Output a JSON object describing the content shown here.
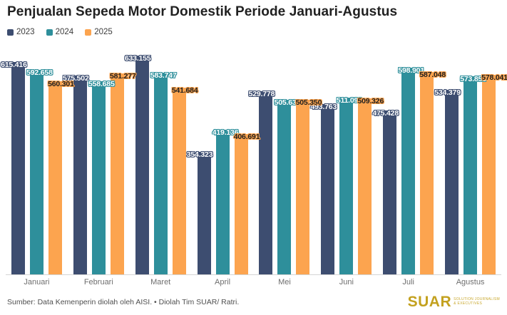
{
  "chart_data": {
    "type": "bar",
    "title": "Penjualan Sepeda Motor Domestik Periode Januari-Agustus",
    "categories": [
      "Januari",
      "Februari",
      "Maret",
      "April",
      "Mei",
      "Juni",
      "Juli",
      "Agustus"
    ],
    "series": [
      {
        "name": "2023",
        "color": "#3D4D70",
        "label_color": "#FFFFFF",
        "values": [
          615416,
          575502,
          633155,
          354323,
          529778,
          493763,
          475428,
          534379
        ],
        "labels": [
          "615.416",
          "575.502",
          "633.155",
          "354.323",
          "529.778",
          "493.763",
          "475.428",
          "534.379"
        ]
      },
      {
        "name": "2024",
        "color": "#2E8F9B",
        "label_color": "#FFFFFF",
        "values": [
          592658,
          558685,
          583747,
          419136,
          505637,
          511093,
          598901,
          573856
        ],
        "labels": [
          "592.658",
          "558.685",
          "583.747",
          "419.136",
          "505.637",
          "511.093",
          "598.901",
          "573.856"
        ]
      },
      {
        "name": "2025",
        "color": "#FCA44F",
        "label_color": "#1E1E1E",
        "values": [
          560301,
          581277,
          541684,
          406691,
          505350,
          509326,
          587048,
          578041
        ],
        "labels": [
          "560.301",
          "581.277",
          "541.684",
          "406.691",
          "505.350",
          "509.326",
          "587.048",
          "578.041"
        ]
      }
    ],
    "ylim": [
      0,
      650000
    ],
    "grid": false,
    "legend_position": "top-left",
    "xlabel": "",
    "ylabel": ""
  },
  "footer": {
    "source": "Sumber: Data Kemenperin diolah oleh AISI. • Diolah Tim SUAR/ Ratri.",
    "logo_text": "SUAR",
    "logo_tagline_line1": "SOLUTION JOURNALISM",
    "logo_tagline_line2": "& EXECUTIVES"
  }
}
